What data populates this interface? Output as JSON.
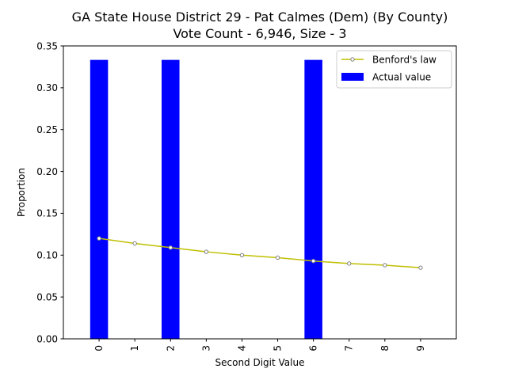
{
  "chart_data": {
    "type": "bar",
    "title_line1": "GA State House District 29 - Pat Calmes (Dem) (By County)",
    "title_line2": "Vote Count - 6,946, Size - 3",
    "xlabel": "Second Digit Value",
    "ylabel": "Proportion",
    "categories": [
      "0",
      "1",
      "2",
      "3",
      "4",
      "5",
      "6",
      "7",
      "8",
      "9"
    ],
    "ylim": [
      0,
      0.35
    ],
    "yticks": [
      "0.00",
      "0.05",
      "0.10",
      "0.15",
      "0.20",
      "0.25",
      "0.30",
      "0.35"
    ],
    "grid": false,
    "legend_position": "top-right",
    "series": [
      {
        "name": "Benford's law",
        "kind": "line",
        "color": "#bfbf00",
        "marker_edge_color": "#808080",
        "values": [
          0.12,
          0.114,
          0.109,
          0.104,
          0.1,
          0.097,
          0.093,
          0.09,
          0.088,
          0.085
        ]
      },
      {
        "name": "Actual value",
        "kind": "bar",
        "color": "#0000ff",
        "values": [
          0.3333,
          0,
          0.3333,
          0,
          0,
          0,
          0.3333,
          0,
          0,
          0
        ]
      }
    ]
  }
}
